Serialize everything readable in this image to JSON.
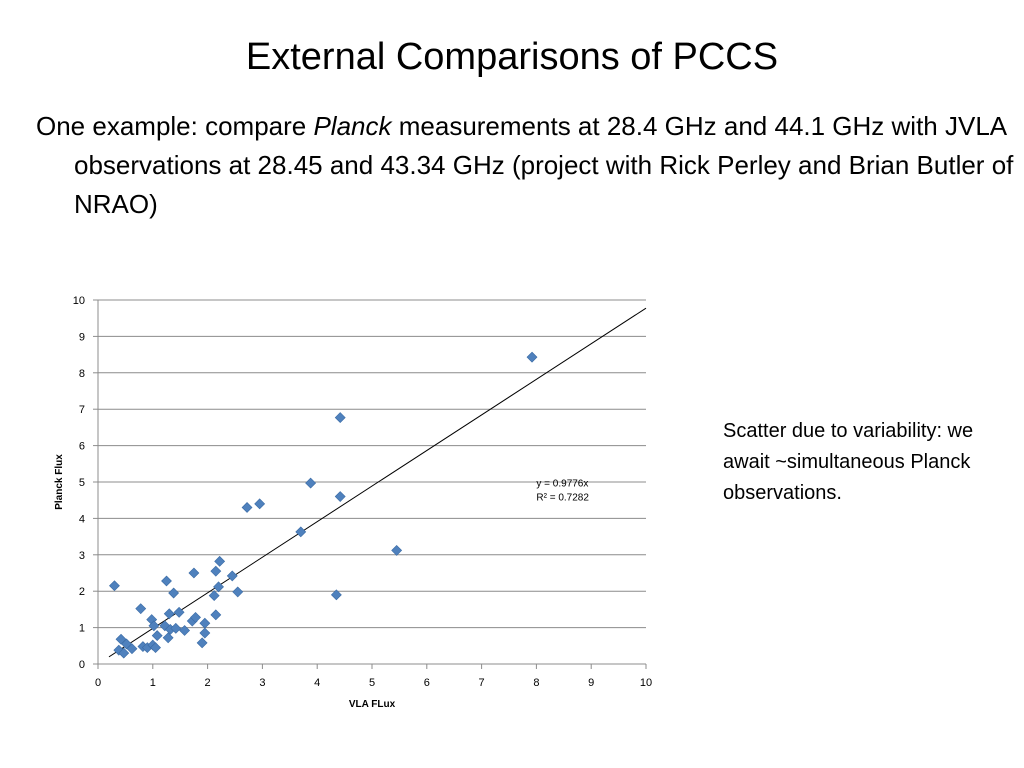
{
  "slide": {
    "title": "External Comparisons of PCCS",
    "bullet": {
      "part1": "One example: compare ",
      "italic": "Planck",
      "part2": " measurements at 28.4 GHz and 44.1 GHz with JVLA observations at 28.45 and 43.34 GHz (project with Rick Perley and Brian Butler of NRAO)"
    },
    "note": "Scatter due to variability: we await ~simultaneous Planck observations."
  },
  "chart_data": {
    "type": "scatter",
    "title": "",
    "xlabel": "VLA FLux",
    "ylabel": "Planck Flux",
    "xlim": [
      0,
      10
    ],
    "ylim": [
      0,
      10
    ],
    "xticks": [
      0,
      1,
      2,
      3,
      4,
      5,
      6,
      7,
      8,
      9,
      10
    ],
    "yticks": [
      0,
      1,
      2,
      3,
      4,
      5,
      6,
      7,
      8,
      9,
      10
    ],
    "grid": "horizontal",
    "legend": "none",
    "marker_color": "#4F81BD",
    "trendline": {
      "type": "linear",
      "slope": 0.9776,
      "x_range": [
        0.2,
        10
      ],
      "equation": "y = 0.9776x",
      "r_squared": "R² = 0.7282",
      "color": "#000000"
    },
    "series": [
      {
        "points": [
          [
            0.3,
            2.15
          ],
          [
            0.38,
            0.38
          ],
          [
            0.42,
            0.68
          ],
          [
            0.47,
            0.3
          ],
          [
            0.52,
            0.55
          ],
          [
            0.62,
            0.42
          ],
          [
            0.78,
            1.52
          ],
          [
            0.82,
            0.48
          ],
          [
            0.9,
            0.45
          ],
          [
            0.98,
            1.22
          ],
          [
            1.0,
            0.52
          ],
          [
            1.02,
            1.05
          ],
          [
            1.05,
            0.45
          ],
          [
            1.08,
            0.78
          ],
          [
            1.22,
            1.05
          ],
          [
            1.25,
            2.28
          ],
          [
            1.28,
            0.72
          ],
          [
            1.3,
            1.38
          ],
          [
            1.32,
            0.95
          ],
          [
            1.38,
            1.95
          ],
          [
            1.42,
            0.98
          ],
          [
            1.48,
            1.42
          ],
          [
            1.58,
            0.92
          ],
          [
            1.72,
            1.18
          ],
          [
            1.75,
            2.5
          ],
          [
            1.78,
            1.28
          ],
          [
            1.9,
            0.58
          ],
          [
            1.95,
            1.12
          ],
          [
            1.95,
            0.85
          ],
          [
            2.12,
            1.88
          ],
          [
            2.15,
            2.55
          ],
          [
            2.15,
            1.35
          ],
          [
            2.2,
            2.12
          ],
          [
            2.22,
            2.82
          ],
          [
            2.45,
            2.42
          ],
          [
            2.55,
            1.98
          ],
          [
            2.72,
            4.3
          ],
          [
            2.95,
            4.4
          ],
          [
            3.7,
            3.63
          ],
          [
            3.88,
            4.97
          ],
          [
            4.35,
            1.9
          ],
          [
            4.42,
            6.77
          ],
          [
            4.42,
            4.6
          ],
          [
            5.45,
            3.12
          ],
          [
            7.92,
            8.43
          ]
        ]
      }
    ]
  }
}
